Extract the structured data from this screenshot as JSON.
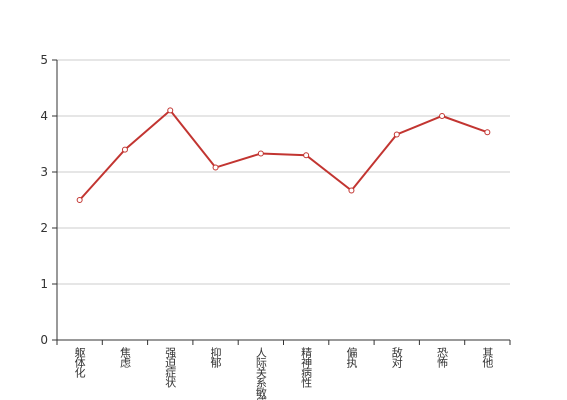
{
  "chart_data": {
    "type": "line",
    "categories": [
      "躯体化",
      "焦虑",
      "强迫症状",
      "抑郁",
      "人际关系敏感",
      "精神病性",
      "偏执",
      "敌对",
      "恐怖",
      "其他"
    ],
    "series": [
      {
        "color": "#c23531",
        "values": [
          2.5,
          3.4,
          4.1,
          3.08,
          3.33,
          3.3,
          2.67,
          3.67,
          4.0,
          3.71
        ]
      }
    ],
    "ylim": [
      0,
      5
    ],
    "yticks": [
      0,
      1,
      2,
      3,
      4,
      5
    ],
    "grid": true
  }
}
